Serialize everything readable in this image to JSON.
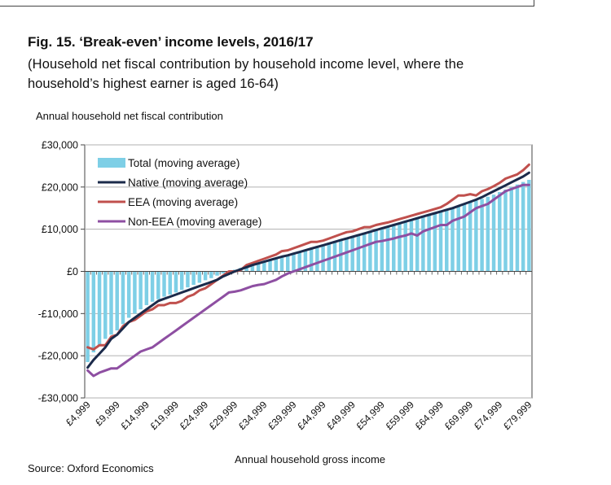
{
  "figure": {
    "title": "Fig. 15.  ‘Break-even’ income levels, 2016/17",
    "subtitle_line1": "(Household net fiscal contribution by household income level, where the",
    "subtitle_line2": "household’s highest earner is aged 16-64)",
    "source": "Source: Oxford Economics"
  },
  "colors": {
    "total": "#7ecfe6",
    "native": "#1b2a4a",
    "eea": "#c0504d",
    "non_eea": "#8e4fa2",
    "gridline": "#b0b0b0",
    "axis": "#444444"
  },
  "chart_data": {
    "type": "bar",
    "title": "‘Break-even’ income levels, 2016/17",
    "ylabel": "Annual household net fiscal contribution",
    "xlabel": "Annual household gross income",
    "ylim": [
      -30000,
      30000
    ],
    "yticks": [
      30000,
      20000,
      10000,
      0,
      -10000,
      -20000,
      -30000
    ],
    "ytick_labels": [
      "£30,000",
      "£20,000",
      "£10,000",
      "£0",
      "-£10,000",
      "-£20,000",
      "-£30,000"
    ],
    "x_tick_labels": [
      "£4,999",
      "£9,999",
      "£14,999",
      "£19,999",
      "£24,999",
      "£29,999",
      "£34,999",
      "£39,999",
      "£44,999",
      "£49,999",
      "£54,999",
      "£59,999",
      "£64,999",
      "£69,999",
      "£74,999",
      "£79,999"
    ],
    "grid": true,
    "legend_position": "top-left",
    "x_income": [
      4999,
      5999,
      6999,
      7999,
      8999,
      9999,
      10999,
      11999,
      12999,
      13999,
      14999,
      15999,
      16999,
      17999,
      18999,
      19999,
      20999,
      21999,
      22999,
      23999,
      24999,
      25999,
      26999,
      27999,
      28999,
      29999,
      30999,
      31999,
      32999,
      33999,
      34999,
      35999,
      36999,
      37999,
      38999,
      39999,
      40999,
      41999,
      42999,
      43999,
      44999,
      45999,
      46999,
      47999,
      48999,
      49999,
      50999,
      51999,
      52999,
      53999,
      54999,
      55999,
      56999,
      57999,
      58999,
      59999,
      60999,
      61999,
      62999,
      63999,
      64999,
      65999,
      66999,
      67999,
      68999,
      69999,
      70999,
      71999,
      72999,
      73999,
      74999,
      75999,
      76999,
      77999,
      78999,
      79999
    ],
    "series": [
      {
        "name": "Total (moving average)",
        "kind": "bar",
        "values": [
          -21500,
          -19200,
          -17500,
          -16000,
          -15000,
          -14000,
          -12500,
          -11000,
          -10000,
          -9000,
          -8000,
          -7200,
          -6600,
          -6000,
          -5500,
          -5000,
          -4400,
          -3800,
          -3200,
          -2700,
          -2100,
          -1600,
          -1000,
          -500,
          0,
          400,
          800,
          1200,
          1600,
          2000,
          2400,
          2800,
          3200,
          3600,
          4000,
          4400,
          4800,
          5200,
          5600,
          6000,
          6400,
          6800,
          7200,
          7600,
          8000,
          8400,
          8800,
          9200,
          9600,
          10000,
          10400,
          10800,
          11200,
          11600,
          12000,
          12400,
          12800,
          13200,
          13600,
          14000,
          14400,
          14800,
          15200,
          15600,
          16000,
          16400,
          16800,
          17200,
          17700,
          18200,
          18800,
          19400,
          20000,
          20600,
          21200,
          21700
        ]
      },
      {
        "name": "Native (moving average)",
        "kind": "line",
        "values": [
          -22800,
          -21000,
          -19500,
          -18000,
          -16000,
          -15000,
          -13500,
          -12000,
          -11000,
          -10000,
          -9000,
          -8000,
          -7000,
          -6500,
          -6000,
          -5500,
          -5000,
          -4500,
          -4000,
          -3500,
          -3000,
          -2500,
          -2000,
          -1200,
          -600,
          0,
          500,
          1000,
          1500,
          1900,
          2300,
          2700,
          3100,
          3500,
          3800,
          4200,
          4600,
          5000,
          5400,
          5800,
          6200,
          6600,
          7000,
          7400,
          7800,
          8200,
          8600,
          9000,
          9400,
          9800,
          10200,
          10600,
          11000,
          11400,
          11800,
          12200,
          12600,
          13000,
          13400,
          13800,
          14200,
          14600,
          15000,
          15500,
          16000,
          16500,
          17000,
          17600,
          18300,
          19000,
          19700,
          20400,
          21100,
          21800,
          22500,
          23400
        ]
      },
      {
        "name": "EEA (moving average)",
        "kind": "line",
        "values": [
          -18000,
          -18500,
          -17500,
          -17500,
          -15500,
          -15000,
          -13000,
          -12000,
          -11500,
          -10500,
          -9500,
          -9000,
          -8000,
          -8000,
          -7500,
          -7500,
          -7000,
          -6000,
          -5500,
          -4500,
          -4000,
          -3000,
          -2000,
          -1000,
          0,
          0,
          300,
          1500,
          2000,
          2500,
          3000,
          3500,
          4000,
          4800,
          5000,
          5500,
          6000,
          6500,
          7000,
          7000,
          7300,
          7800,
          8300,
          8800,
          9300,
          9500,
          10000,
          10500,
          10500,
          11000,
          11300,
          11600,
          12000,
          12400,
          12800,
          13200,
          13600,
          14000,
          14400,
          14800,
          15200,
          16000,
          17000,
          18000,
          18000,
          18300,
          18000,
          19000,
          19500,
          20200,
          21000,
          22000,
          22500,
          23000,
          24000,
          25300
        ]
      },
      {
        "name": "Non-EEA (moving average)",
        "kind": "line",
        "values": [
          -23500,
          -24800,
          -24000,
          -23500,
          -23000,
          -23000,
          -22000,
          -21000,
          -20000,
          -19000,
          -18500,
          -18000,
          -17000,
          -16000,
          -15000,
          -14000,
          -13000,
          -12000,
          -11000,
          -10000,
          -9000,
          -8000,
          -7000,
          -6000,
          -5000,
          -4800,
          -4500,
          -4000,
          -3500,
          -3200,
          -3000,
          -2500,
          -2000,
          -1200,
          -500,
          0,
          500,
          1000,
          1500,
          2000,
          2500,
          3000,
          3500,
          4000,
          4500,
          5000,
          5500,
          6000,
          6500,
          7000,
          7200,
          7500,
          7800,
          8200,
          8500,
          9000,
          8500,
          9500,
          10000,
          10500,
          11000,
          11000,
          12000,
          12500,
          13000,
          14000,
          15000,
          15500,
          16000,
          17000,
          18000,
          19000,
          19500,
          20000,
          20500,
          20500
        ]
      }
    ],
    "legend_labels": [
      "Total (moving average)",
      "Native (moving average)",
      "EEA (moving average)",
      "Non-EEA (moving average)"
    ]
  }
}
